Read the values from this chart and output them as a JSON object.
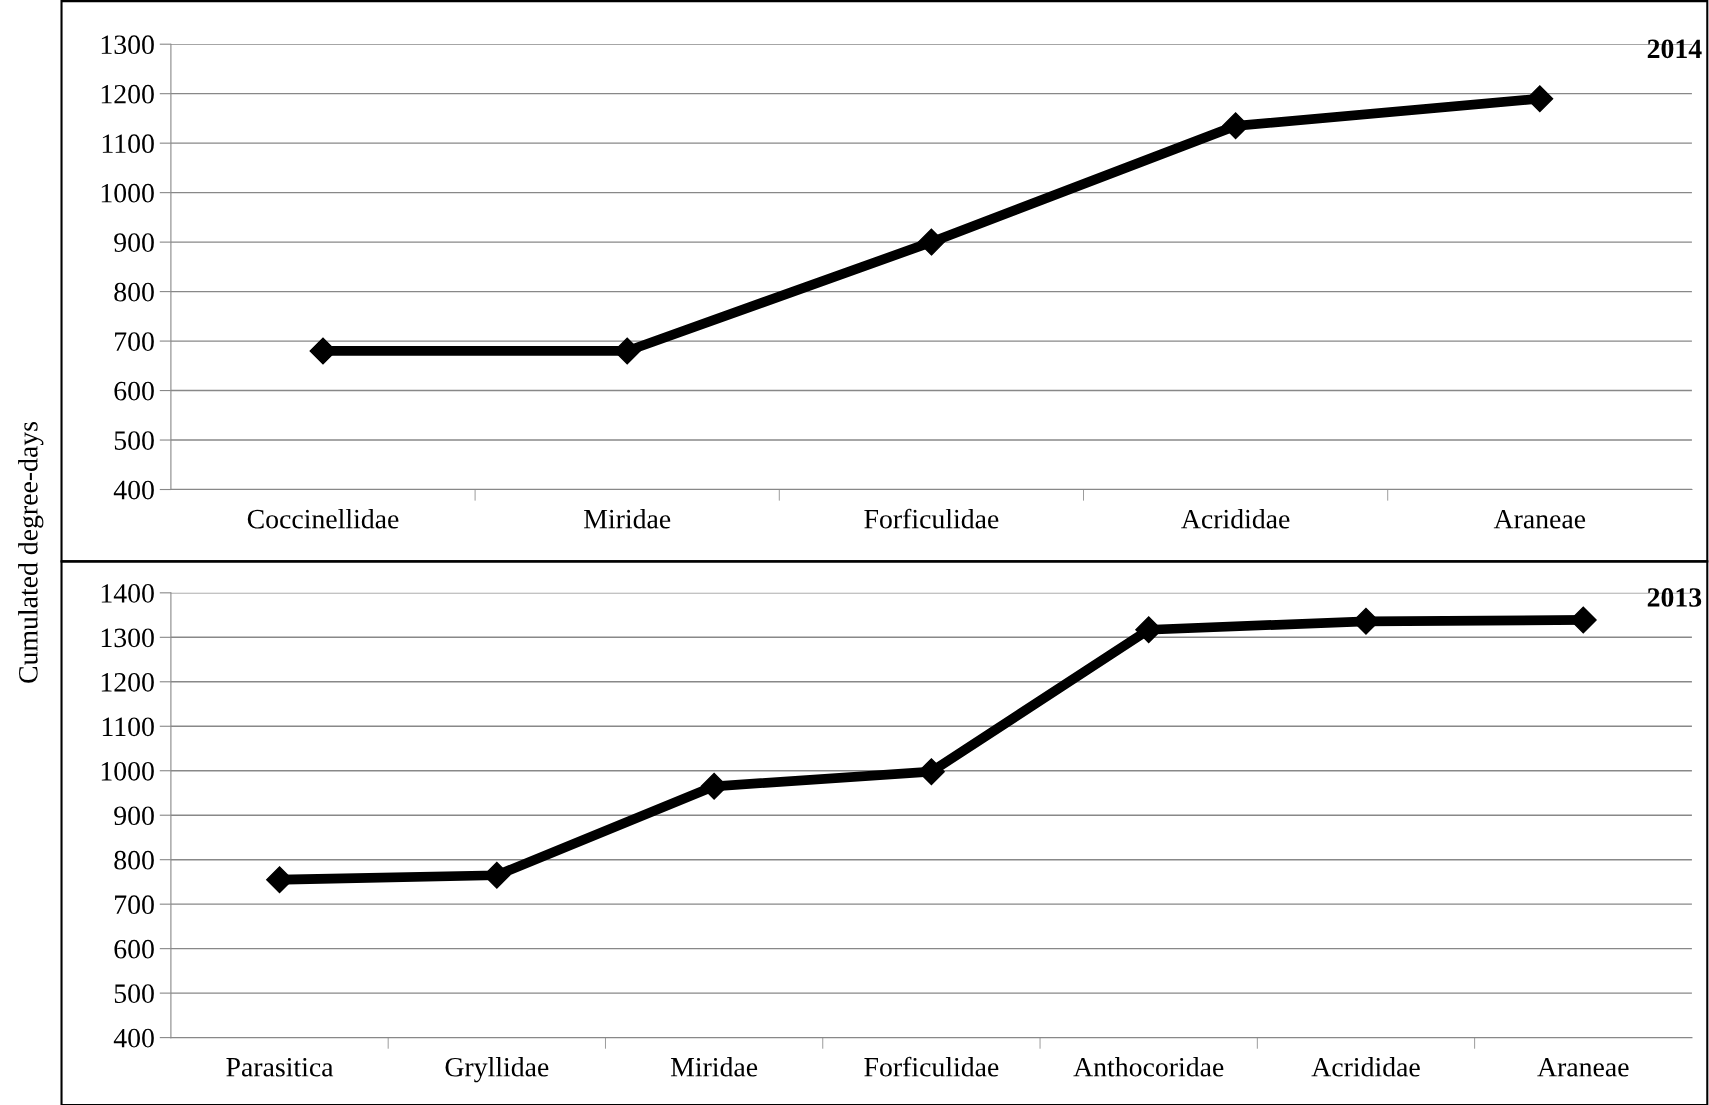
{
  "chart_data": [
    {
      "type": "line",
      "title": "2014",
      "ylabel": "Cumulated degree-days",
      "categories": [
        "Coccinellidae",
        "Miridae",
        "Forficulidae",
        "Acrididae",
        "Araneae"
      ],
      "series": [
        {
          "color": "#000000",
          "values": [
            680,
            680,
            900,
            1135,
            1190
          ]
        }
      ],
      "ylim": [
        400,
        1300
      ],
      "yticks": [
        400,
        500,
        600,
        700,
        800,
        900,
        1000,
        1100,
        1200,
        1300
      ],
      "grid": "y",
      "marker": "diamond",
      "line_style": "solid",
      "legend": false
    },
    {
      "type": "line",
      "title": "2013",
      "categories": [
        "Parasitica",
        "Gryllidae",
        "Miridae",
        "Forficulidae",
        "Anthocoridae",
        "Acrididae",
        "Araneae"
      ],
      "series": [
        {
          "color": "#000000",
          "values": [
            755,
            765,
            965,
            998,
            1317,
            1336,
            1339
          ]
        }
      ],
      "ylim": [
        400,
        1400
      ],
      "yticks": [
        400,
        500,
        600,
        700,
        800,
        900,
        1000,
        1100,
        1200,
        1300,
        1400
      ],
      "grid": "y",
      "marker": "diamond",
      "line_style": "solid",
      "legend": false
    }
  ]
}
